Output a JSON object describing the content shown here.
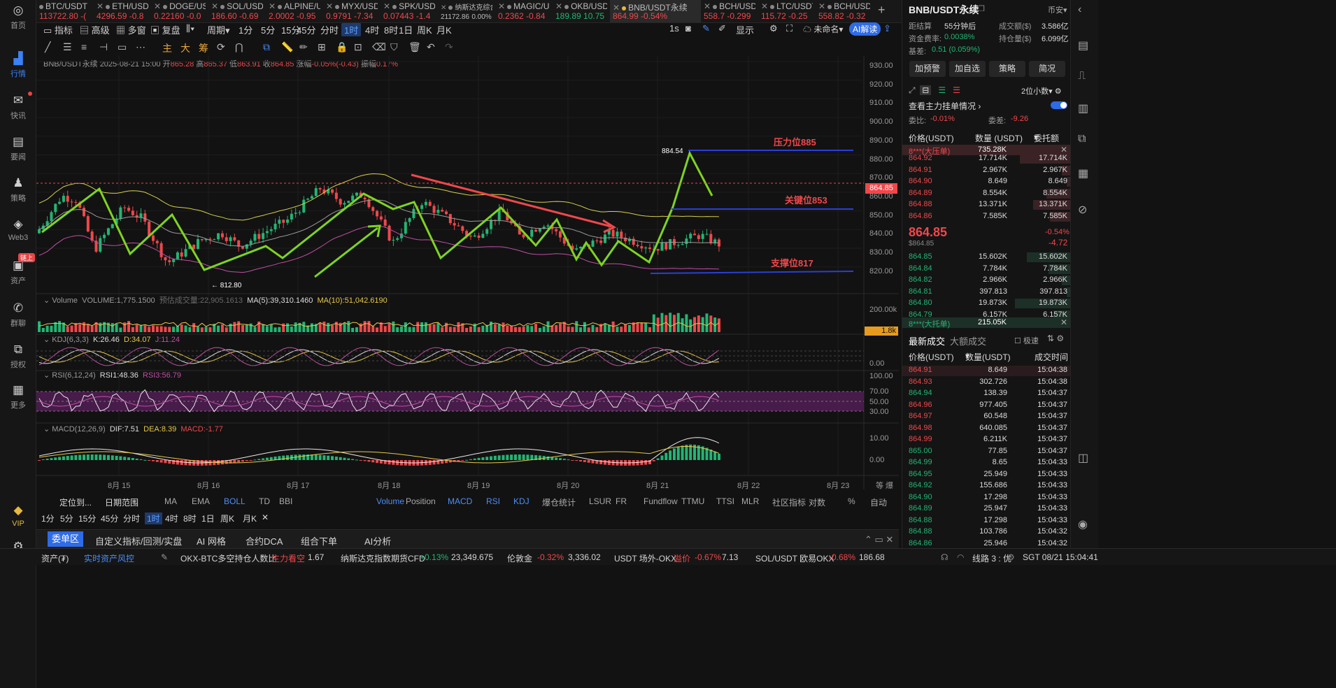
{
  "colors": {
    "up": "#22b573",
    "down": "#f0474b",
    "accent": "#3b82f6",
    "bg": "#121212",
    "ma_line": "#e6c84a",
    "bb_line": "#d5cf4c",
    "bb_mid": "#9a9a9a",
    "bb_low": "#c04fa4",
    "trend_green": "#7ed321",
    "resist_blue": "#2a3fd6",
    "arrow_red": "#f0474b",
    "rsi_band": "#5a1f5e"
  },
  "nav": [
    {
      "label": "首页",
      "icon": "home-icon"
    },
    {
      "label": "行情",
      "icon": "chart-bars-icon",
      "active": true
    },
    {
      "label": "快讯",
      "icon": "newsflash-icon",
      "dot": true
    },
    {
      "label": "要闻",
      "icon": "news-icon"
    },
    {
      "label": "策略",
      "icon": "strategy-icon"
    },
    {
      "label": "Web3",
      "icon": "web3-icon"
    },
    {
      "label": "资产",
      "icon": "wallet-icon",
      "tag": "链上"
    },
    {
      "label": "群聊",
      "icon": "chat-icon"
    },
    {
      "label": "授权",
      "icon": "authorize-icon"
    },
    {
      "label": "更多",
      "icon": "more-grid-icon"
    },
    {
      "label": "VIP",
      "icon": "vip-diamond-icon"
    },
    {
      "label": "",
      "icon": "settings-icon"
    }
  ],
  "tickers": [
    {
      "name": "BTC/USDT",
      "price": "113722.80",
      "chg": "-(",
      "dir": "dn"
    },
    {
      "name": "ETH/USDT",
      "price": "4296.59",
      "chg": "-0.8",
      "dir": "dn"
    },
    {
      "name": "DOGE/USDT",
      "price": "0.22160",
      "chg": "-0.0",
      "dir": "dn"
    },
    {
      "name": "SOL/USDT",
      "price": "186.60",
      "chg": "-0.69",
      "dir": "dn"
    },
    {
      "name": "ALPINE/USDT",
      "price": "2.0002",
      "chg": "-0.95",
      "dir": "dn"
    },
    {
      "name": "MYX/USDT",
      "price": "0.9791",
      "chg": "-7.34",
      "dir": "dn"
    },
    {
      "name": "SPK/USDT",
      "price": "0.07443",
      "chg": "-1.4",
      "dir": "dn"
    },
    {
      "name": "纳斯达克综合指数",
      "price": "21172.86",
      "chg": "0.00%",
      "dir": "neutral"
    },
    {
      "name": "MAGIC/USDT",
      "price": "0.2362",
      "chg": "-0.84",
      "dir": "dn"
    },
    {
      "name": "OKB/USDT",
      "price": "189.89",
      "chg": "10.75",
      "dir": "up"
    },
    {
      "name": "BNB/USDT永续",
      "price": "864.99",
      "chg": "-0.54%",
      "dir": "dn",
      "active": true
    },
    {
      "name": "BCH/USDT",
      "price": "558.7",
      "chg": "-0.299",
      "dir": "dn"
    },
    {
      "name": "LTC/USDT",
      "price": "115.72",
      "chg": "-0.25",
      "dir": "dn"
    },
    {
      "name": "BCH/USDT",
      "price": "558.82",
      "chg": "-0.32",
      "dir": "dn"
    }
  ],
  "toolbar": {
    "indicators": "指标",
    "advanced": "高级",
    "multiwin": "多窗",
    "replay": "复盘",
    "period": "周期",
    "intervals": [
      "1分",
      "5分",
      "15分",
      "45分",
      "分时",
      "1时",
      "4时",
      "8时",
      "1日",
      "周K",
      "月K"
    ],
    "selected_interval": "1时",
    "second": "1s",
    "display": "显示",
    "unnamed": "未命名",
    "ai": "AI解读"
  },
  "drawtools": {
    "labels": [
      "主",
      "大",
      "筹"
    ]
  },
  "chart": {
    "symbol": "BNB/USDT永续",
    "datetime": "2025-08-21 15:00",
    "open_label": "开",
    "open": "865.28",
    "high_label": "高",
    "high": "865.37",
    "low_label": "低",
    "low": "863.91",
    "close_label": "收",
    "close": "864.85",
    "chg_label": "涨幅",
    "chg": "-0.05%(-0.43)",
    "amp_label": "振幅",
    "amp": "0.17%",
    "y_ticks": [
      "930.00",
      "920.00",
      "910.00",
      "900.00",
      "890.00",
      "880.00",
      "870.00",
      "860.00",
      "850.00",
      "840.00",
      "830.00",
      "820.00"
    ],
    "price_tag": "864.85",
    "high_mark": "884.54",
    "low_mark": "← 812.80",
    "annotations": {
      "resist": "压力位885",
      "key": "关键位853",
      "support": "支撑位817"
    },
    "x_ticks": [
      "8月 15",
      "8月 16",
      "8月 17",
      "8月 18",
      "8月 19",
      "8月 20",
      "8月 21",
      "8月 22",
      "8月 23"
    ]
  },
  "volume": {
    "label": "Volume",
    "value": "VOLUME:1,775.1500",
    "est": "预估成交量:22,905.1613",
    "ma5": "MA(5):39,310.1460",
    "ma10": "MA(10):51,042.6190",
    "y_top": "200.00k",
    "tag": "1.8k"
  },
  "kdj": {
    "label": "KDJ(6,3,3)",
    "k": "K:26.46",
    "d": "D:34.07",
    "j": "J:11.24",
    "y": "0.00"
  },
  "rsi": {
    "label": "RSI(6,12,24)",
    "r1": "RSI1:48.36",
    "r3": "RSI3:56.79",
    "y": [
      "100.00",
      "70.00",
      "50.00",
      "30.00"
    ]
  },
  "macd": {
    "label": "MACD(12,26,9)",
    "dif": "DIF:7.51",
    "dea": "DEA:8.39",
    "macd": "MACD:-1.77",
    "y": [
      "10.00",
      "0.00"
    ]
  },
  "bottom_tabs": {
    "locate": "定位到...",
    "range": "日期范围",
    "items": [
      "MA",
      "EMA",
      "BOLL",
      "TD",
      "BBI",
      "Volume",
      "Position",
      "MACD",
      "RSI",
      "KDJ",
      "爆仓统计",
      "LSUR",
      "FR",
      "Fundflow",
      "TTMU",
      "TTSI",
      "MLR",
      "社区指标",
      "对数",
      "%",
      "自动"
    ]
  },
  "dock": {
    "tabs": [
      "委单区",
      "自定义指标/回测/实盘",
      "AI 网格",
      "合约DCA",
      "组合下单",
      "AI分析"
    ]
  },
  "status": {
    "assets": "资产(₮)",
    "risk": "实时资产风控",
    "okx_btc": "OKX-BTC多空持仓人数比",
    "bias": "主力看空",
    "bias_val": "1.67",
    "ndx": "纳斯达克指数期货CFD",
    "ndx_chg": "+0.13%",
    "ndx_val": "23,349.675",
    "gold": "伦敦金",
    "gold_chg": "-0.32%",
    "gold_val": "3,336.02",
    "usdt": "USDT 场外-OKX",
    "premium": "溢价",
    "usdt_chg": "-0.67%",
    "usdt_val": "7.13",
    "sol": "SOL/USDT 欧易OKX",
    "sol_chg": "-0.68%",
    "sol_val": "186.68",
    "line": "线路 3 : 优",
    "sgt": "SGT 08/21 15:04:41"
  },
  "panel": {
    "title": "BNB/USDT永续",
    "currency": "币安",
    "funding_label": "距结算",
    "funding_time": "55分钟后",
    "turnover_label": "成交额($)",
    "turnover": "3.586亿",
    "rate_label": "资金费率:",
    "rate": "0.0038%",
    "oi_label": "持仓量($)",
    "oi": "6.099亿",
    "basis_label": "基差:",
    "basis": "0.51 (0.059%)",
    "buttons": [
      "加预警",
      "加自选",
      "策略",
      "简况"
    ],
    "decimal": "2位小数",
    "main_orders": "查看主力挂单情况",
    "ratio_label": "委比:",
    "ratio": "-0.01%",
    "diff_label": "委差:",
    "diff": "-9.26",
    "book_headers": [
      "价格(USDT)",
      "数量 (USDT)",
      "委托额"
    ],
    "big_ask": {
      "label": "8***(大压单)",
      "qty": "735.28K"
    },
    "asks": [
      {
        "p": "864.92",
        "q": "17.714K",
        "t": "17.714K",
        "w": 0.3
      },
      {
        "p": "864.91",
        "q": "2.967K",
        "t": "2.967K",
        "w": 0.05
      },
      {
        "p": "864.90",
        "q": "8.649",
        "t": "8.649",
        "w": 0.02
      },
      {
        "p": "864.89",
        "q": "8.554K",
        "t": "8.554K",
        "w": 0.14
      },
      {
        "p": "864.88",
        "q": "13.371K",
        "t": "13.371K",
        "w": 0.22
      },
      {
        "p": "864.86",
        "q": "7.585K",
        "t": "7.585K",
        "w": 0.12
      }
    ],
    "last": "864.85",
    "last_sub": "$864.85",
    "last_pct": "-0.54%",
    "last_abs": "-4.72",
    "bids": [
      {
        "p": "864.85",
        "q": "15.602K",
        "t": "15.602K",
        "w": 0.26
      },
      {
        "p": "864.84",
        "q": "7.784K",
        "t": "7.784K",
        "w": 0.13
      },
      {
        "p": "864.82",
        "q": "2.966K",
        "t": "2.966K",
        "w": 0.05
      },
      {
        "p": "864.81",
        "q": "397.813",
        "t": "397.813",
        "w": 0.02
      },
      {
        "p": "864.80",
        "q": "19.873K",
        "t": "19.873K",
        "w": 0.33
      },
      {
        "p": "864.79",
        "q": "6.157K",
        "t": "6.157K",
        "w": 0.1
      }
    ],
    "big_bid": {
      "label": "8***(大托单)",
      "qty": "215.05K"
    },
    "trade_tabs": [
      "最新成交",
      "大额成交"
    ],
    "fast": "极速",
    "trade_headers": [
      "价格(USDT)",
      "数量(USDT)",
      "成交时间"
    ],
    "trades": [
      {
        "p": "864.91",
        "q": "8.649",
        "t": "15:04:38",
        "d": "dn"
      },
      {
        "p": "864.93",
        "q": "302.726",
        "t": "15:04:38",
        "d": "dn"
      },
      {
        "p": "864.94",
        "q": "138.39",
        "t": "15:04:37",
        "d": "up"
      },
      {
        "p": "864.96",
        "q": "977.405",
        "t": "15:04:37",
        "d": "dn"
      },
      {
        "p": "864.97",
        "q": "60.548",
        "t": "15:04:37",
        "d": "dn"
      },
      {
        "p": "864.98",
        "q": "640.085",
        "t": "15:04:37",
        "d": "dn"
      },
      {
        "p": "864.99",
        "q": "6.211K",
        "t": "15:04:37",
        "d": "dn"
      },
      {
        "p": "865.00",
        "q": "77.85",
        "t": "15:04:37",
        "d": "up"
      },
      {
        "p": "864.99",
        "q": "8.65",
        "t": "15:04:33",
        "d": "up"
      },
      {
        "p": "864.95",
        "q": "25.949",
        "t": "15:04:33",
        "d": "up"
      },
      {
        "p": "864.92",
        "q": "155.686",
        "t": "15:04:33",
        "d": "up"
      },
      {
        "p": "864.90",
        "q": "17.298",
        "t": "15:04:33",
        "d": "up"
      },
      {
        "p": "864.89",
        "q": "25.947",
        "t": "15:04:33",
        "d": "up"
      },
      {
        "p": "864.88",
        "q": "17.298",
        "t": "15:04:33",
        "d": "up"
      },
      {
        "p": "864.88",
        "q": "103.786",
        "t": "15:04:32",
        "d": "up"
      },
      {
        "p": "864.86",
        "q": "25.946",
        "t": "15:04:32",
        "d": "up"
      }
    ]
  }
}
